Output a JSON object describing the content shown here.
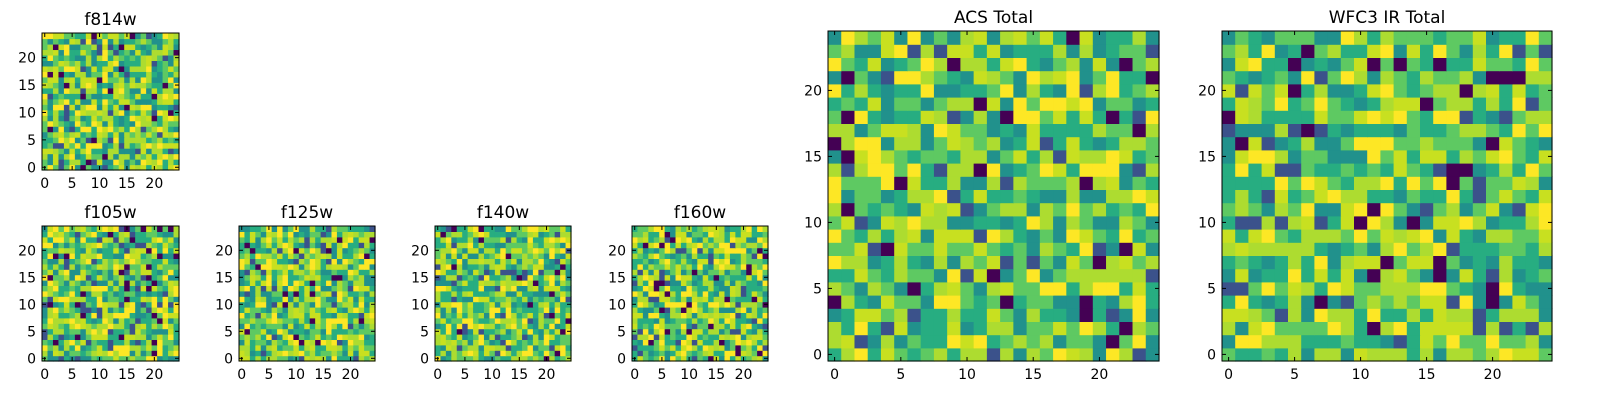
{
  "chart_data": [
    {
      "type": "heatmap",
      "title": "f814w",
      "xticks": [
        0,
        5,
        10,
        15,
        20
      ],
      "yticks": [
        0,
        5,
        10,
        15,
        20
      ],
      "xlim": [
        0,
        24
      ],
      "ylim": [
        0,
        24
      ],
      "grid": false,
      "colormap": "viridis",
      "seed": 814
    },
    {
      "type": "heatmap",
      "title": "f105w",
      "xticks": [
        0,
        5,
        10,
        15,
        20
      ],
      "yticks": [
        0,
        5,
        10,
        15,
        20
      ],
      "xlim": [
        0,
        24
      ],
      "ylim": [
        0,
        24
      ],
      "grid": false,
      "colormap": "viridis",
      "seed": 105
    },
    {
      "type": "heatmap",
      "title": "f125w",
      "xticks": [
        0,
        5,
        10,
        15,
        20
      ],
      "yticks": [
        0,
        5,
        10,
        15,
        20
      ],
      "xlim": [
        0,
        24
      ],
      "ylim": [
        0,
        24
      ],
      "grid": false,
      "colormap": "viridis",
      "seed": 125
    },
    {
      "type": "heatmap",
      "title": "f140w",
      "xticks": [
        0,
        5,
        10,
        15,
        20
      ],
      "yticks": [
        0,
        5,
        10,
        15,
        20
      ],
      "xlim": [
        0,
        24
      ],
      "ylim": [
        0,
        24
      ],
      "grid": false,
      "colormap": "viridis",
      "seed": 140
    },
    {
      "type": "heatmap",
      "title": "f160w",
      "xticks": [
        0,
        5,
        10,
        15,
        20
      ],
      "yticks": [
        0,
        5,
        10,
        15,
        20
      ],
      "xlim": [
        0,
        24
      ],
      "ylim": [
        0,
        24
      ],
      "grid": false,
      "colormap": "viridis",
      "seed": 160
    },
    {
      "type": "heatmap",
      "title": "ACS Total",
      "xticks": [
        0,
        5,
        10,
        15,
        20
      ],
      "yticks": [
        0,
        5,
        10,
        15,
        20
      ],
      "xlim": [
        0,
        24
      ],
      "ylim": [
        0,
        24
      ],
      "grid": false,
      "colormap": "viridis",
      "seed": 1
    },
    {
      "type": "heatmap",
      "title": "WFC3 IR Total",
      "xticks": [
        0,
        5,
        10,
        15,
        20
      ],
      "yticks": [
        0,
        5,
        10,
        15,
        20
      ],
      "xlim": [
        0,
        24
      ],
      "ylim": [
        0,
        24
      ],
      "grid": false,
      "colormap": "viridis",
      "seed": 3
    }
  ],
  "palette": [
    "#440154",
    "#3b528b",
    "#21918c",
    "#27ad81",
    "#5ec962",
    "#addc30",
    "#c8e020",
    "#fde725"
  ]
}
